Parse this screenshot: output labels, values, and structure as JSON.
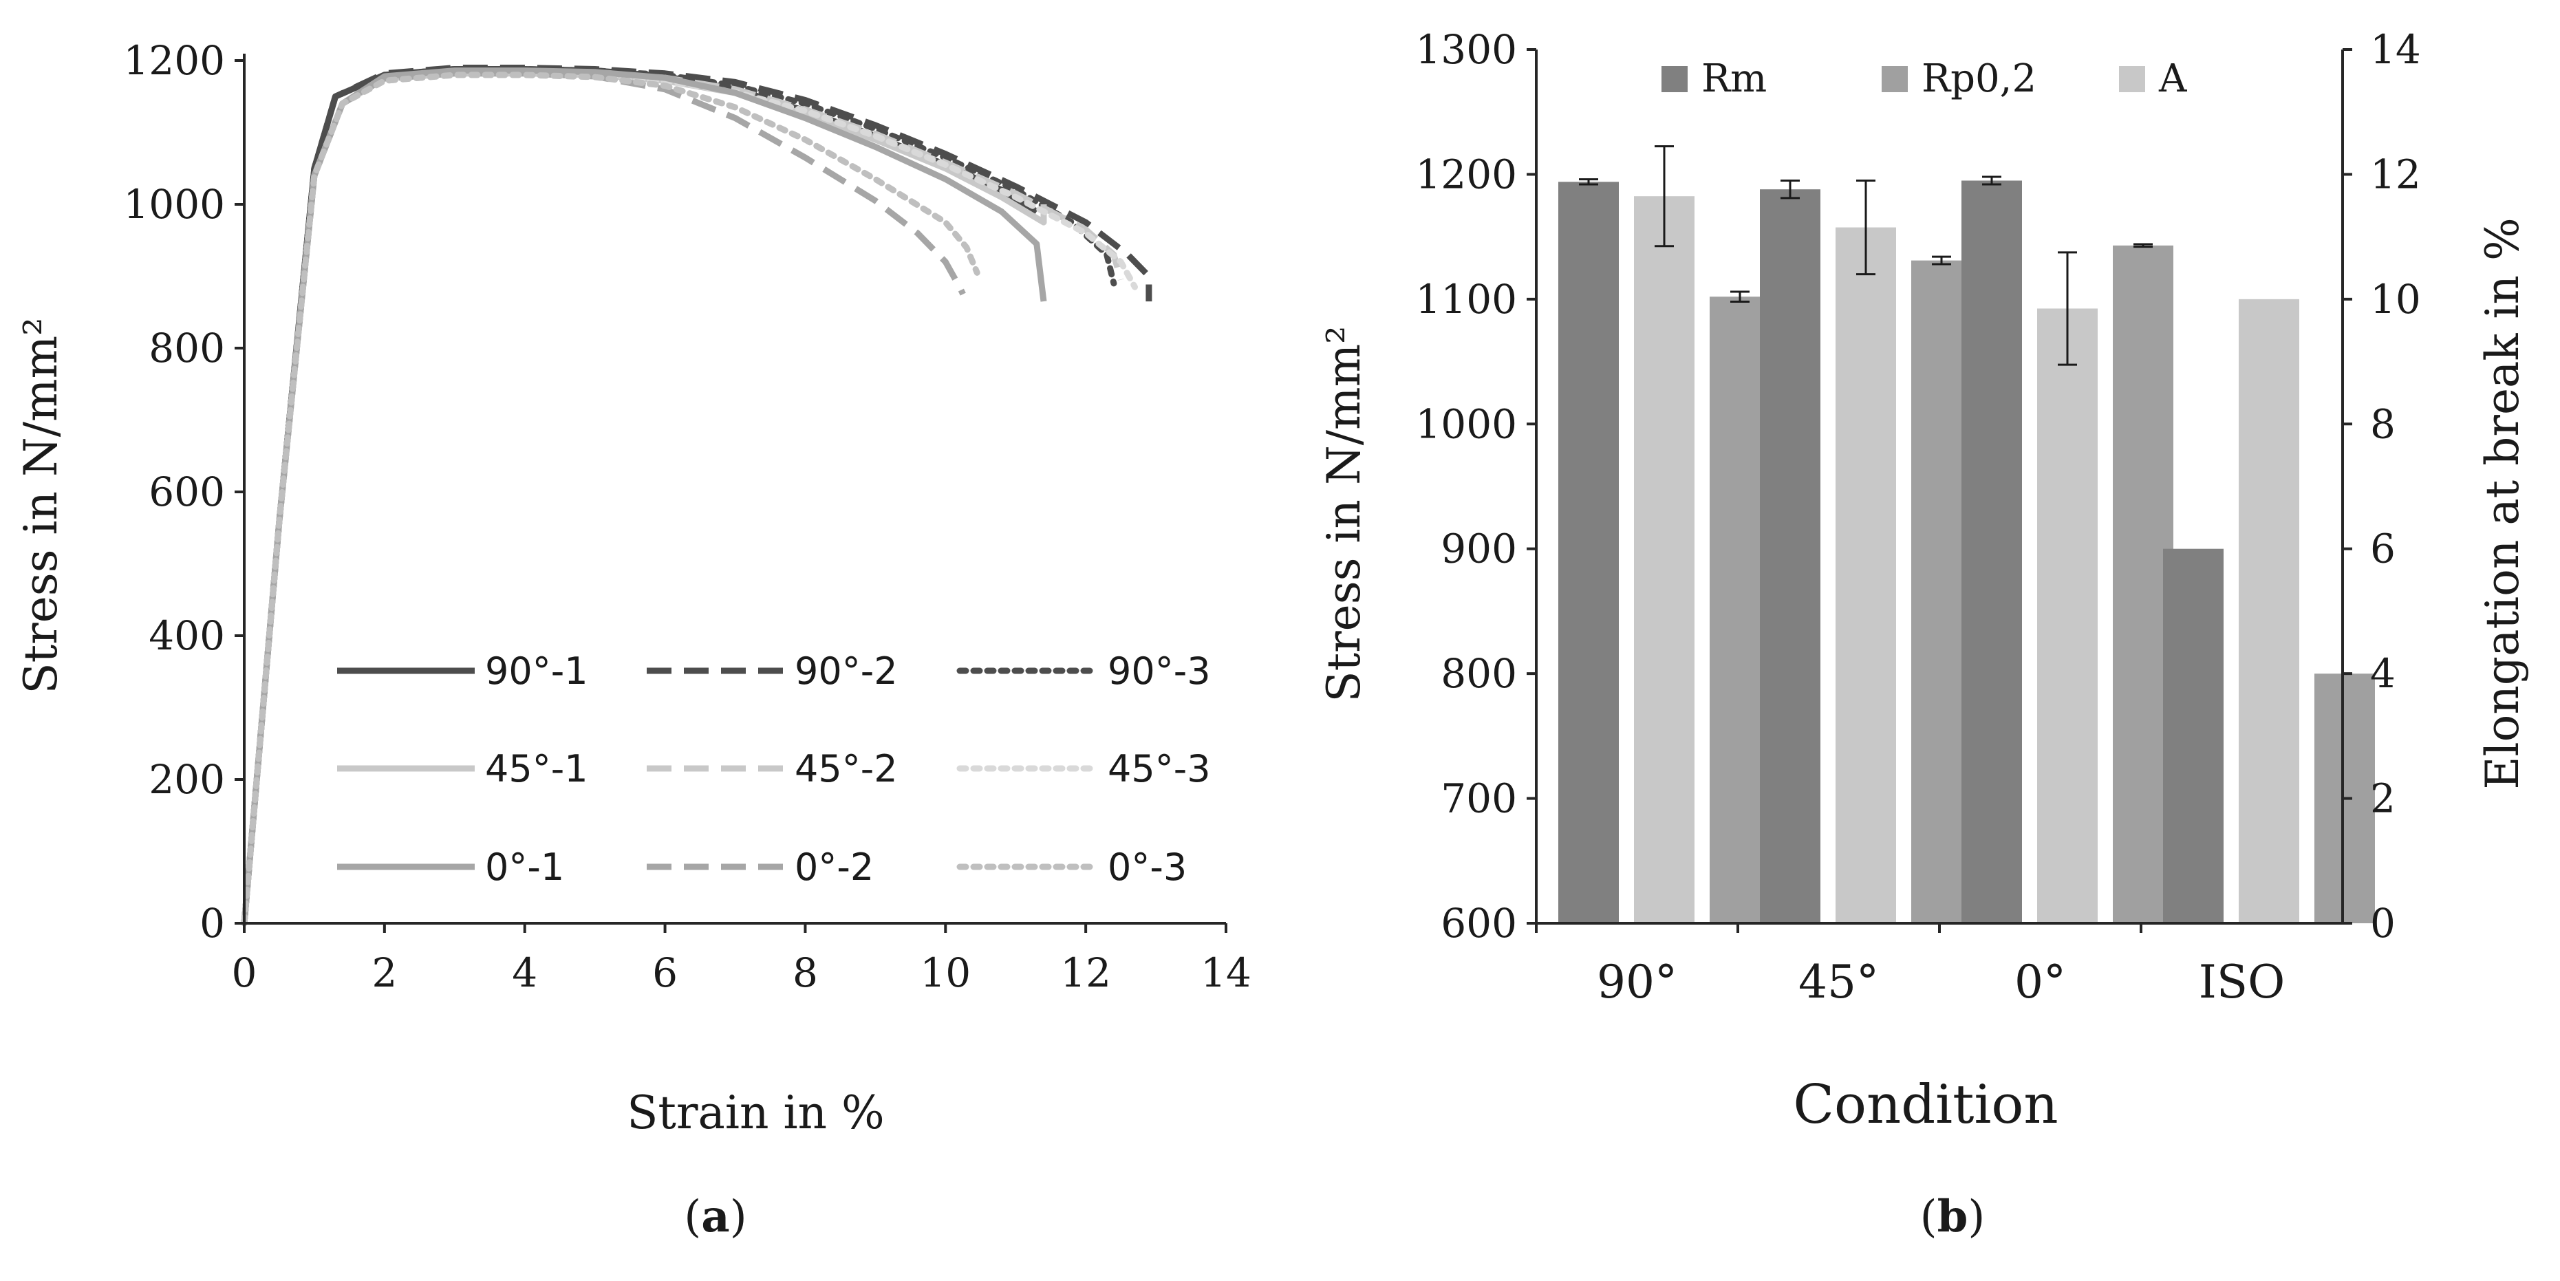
{
  "chart_data": [
    {
      "type": "line",
      "panel_label": "a",
      "xlabel": "Strain in %",
      "ylabel": "Stress in N/mm²",
      "xlim": [
        0,
        14
      ],
      "ylim": [
        0,
        1200
      ],
      "xticks": [
        0,
        2,
        4,
        6,
        8,
        10,
        12,
        14
      ],
      "yticks": [
        0,
        200,
        400,
        600,
        800,
        1000,
        1200
      ],
      "grid": false,
      "legend_position": "lower-right, 3 columns",
      "series": [
        {
          "name": "90°-1",
          "color": "#4d4d4d",
          "dash": "solid",
          "x": [
            0,
            0.5,
            1.0,
            1.3,
            2,
            3,
            4,
            5,
            6,
            7,
            8,
            9,
            10,
            10.8,
            11.3
          ],
          "y": [
            0,
            560,
            1050,
            1150,
            1180,
            1188,
            1188,
            1186,
            1178,
            1160,
            1130,
            1095,
            1055,
            1020,
            990
          ]
        },
        {
          "name": "90°-2",
          "color": "#4d4d4d",
          "dash": "dash",
          "x": [
            0,
            0.5,
            1.0,
            1.3,
            2,
            3,
            4,
            5,
            6,
            7,
            8,
            9,
            10,
            11,
            12,
            12.6,
            12.9,
            12.9
          ],
          "y": [
            0,
            560,
            1050,
            1150,
            1182,
            1190,
            1190,
            1188,
            1182,
            1170,
            1145,
            1110,
            1070,
            1025,
            975,
            930,
            900,
            865
          ]
        },
        {
          "name": "90°-3",
          "color": "#4d4d4d",
          "dash": "dot",
          "x": [
            0,
            0.5,
            1.0,
            1.3,
            2,
            3,
            4,
            5,
            6,
            7,
            8,
            9,
            10,
            11,
            11.8,
            12.3,
            12.4
          ],
          "y": [
            0,
            560,
            1050,
            1150,
            1180,
            1188,
            1188,
            1186,
            1180,
            1165,
            1140,
            1105,
            1065,
            1020,
            975,
            930,
            890
          ]
        },
        {
          "name": "45°-1",
          "color": "#c8c8c8",
          "dash": "solid",
          "x": [
            0,
            0.5,
            1.0,
            1.4,
            2,
            3,
            4,
            5,
            6,
            7,
            8,
            9,
            10,
            10.8,
            11.4,
            11.4
          ],
          "y": [
            0,
            560,
            1040,
            1140,
            1175,
            1182,
            1182,
            1180,
            1172,
            1155,
            1125,
            1090,
            1050,
            1010,
            975,
            1000
          ]
        },
        {
          "name": "45°-2",
          "color": "#c8c8c8",
          "dash": "dash",
          "x": [
            0,
            0.5,
            1.0,
            1.4,
            2,
            3,
            4,
            5,
            6,
            7,
            8,
            9,
            10,
            11,
            12,
            12.4,
            12.5
          ],
          "y": [
            0,
            560,
            1040,
            1140,
            1177,
            1185,
            1185,
            1183,
            1176,
            1160,
            1132,
            1098,
            1058,
            1015,
            965,
            930,
            895
          ]
        },
        {
          "name": "45°-3",
          "color": "#d9d9d9",
          "dash": "dot",
          "x": [
            0,
            0.5,
            1.0,
            1.4,
            2,
            3,
            4,
            5,
            6,
            7,
            8,
            9,
            10,
            11,
            12,
            12.5,
            12.7
          ],
          "y": [
            0,
            560,
            1040,
            1140,
            1172,
            1180,
            1180,
            1178,
            1172,
            1156,
            1130,
            1095,
            1055,
            1010,
            960,
            920,
            885
          ]
        },
        {
          "name": "0°-1",
          "color": "#a6a6a6",
          "dash": "solid",
          "x": [
            0,
            0.5,
            1.0,
            1.4,
            2,
            3,
            4,
            5,
            6,
            7,
            8,
            9,
            10,
            10.8,
            11.3,
            11.4
          ],
          "y": [
            0,
            560,
            1040,
            1140,
            1178,
            1186,
            1186,
            1184,
            1176,
            1155,
            1120,
            1080,
            1035,
            990,
            945,
            865
          ]
        },
        {
          "name": "0°-2",
          "color": "#a6a6a6",
          "dash": "dash",
          "x": [
            0,
            0.5,
            1.0,
            1.4,
            2,
            3,
            4,
            5,
            6,
            7,
            8,
            9,
            9.6,
            10.0,
            10.2,
            10.25
          ],
          "y": [
            0,
            560,
            1040,
            1140,
            1175,
            1182,
            1182,
            1178,
            1160,
            1120,
            1065,
            1005,
            960,
            920,
            885,
            875
          ]
        },
        {
          "name": "0°-3",
          "color": "#bfbfbf",
          "dash": "dot",
          "x": [
            0,
            0.5,
            1.0,
            1.4,
            2,
            3,
            4,
            5,
            6,
            7,
            8,
            9,
            10,
            10.3,
            10.45
          ],
          "y": [
            0,
            560,
            1040,
            1140,
            1172,
            1180,
            1180,
            1177,
            1165,
            1135,
            1090,
            1035,
            975,
            940,
            905
          ]
        }
      ]
    },
    {
      "type": "bar",
      "panel_label": "b",
      "xlabel": "Condition",
      "ylabel": "Stress in N/mm²",
      "y2label": "Elongation at break in %",
      "categories": [
        "90°",
        "45°",
        "0°",
        "ISO"
      ],
      "ylim": [
        600,
        1300
      ],
      "yticks": [
        600,
        700,
        800,
        900,
        1000,
        1100,
        1200,
        1300
      ],
      "y2lim": [
        0,
        14
      ],
      "y2ticks": [
        0,
        2,
        4,
        6,
        8,
        10,
        12,
        14
      ],
      "grid": false,
      "legend_position": "top",
      "series": [
        {
          "name": "Rm",
          "axis": "left",
          "color": "#808080",
          "values": [
            1194,
            1188,
            1195,
            900
          ],
          "errors": [
            2,
            7,
            3,
            null
          ]
        },
        {
          "name": "A",
          "axis": "right",
          "color": "#c8c8c8",
          "values": [
            11.65,
            11.15,
            9.85,
            10
          ],
          "errors": [
            0.8,
            0.75,
            0.9,
            null
          ]
        },
        {
          "name": "Rp0,2",
          "axis": "left",
          "color": "#a0a0a0",
          "values": [
            1102,
            1131,
            1143,
            800
          ],
          "errors": [
            4,
            3,
            1,
            null
          ]
        }
      ]
    }
  ],
  "captions": {
    "a": "(a)",
    "a_letter": "a",
    "b": "(b)",
    "b_letter": "b"
  }
}
